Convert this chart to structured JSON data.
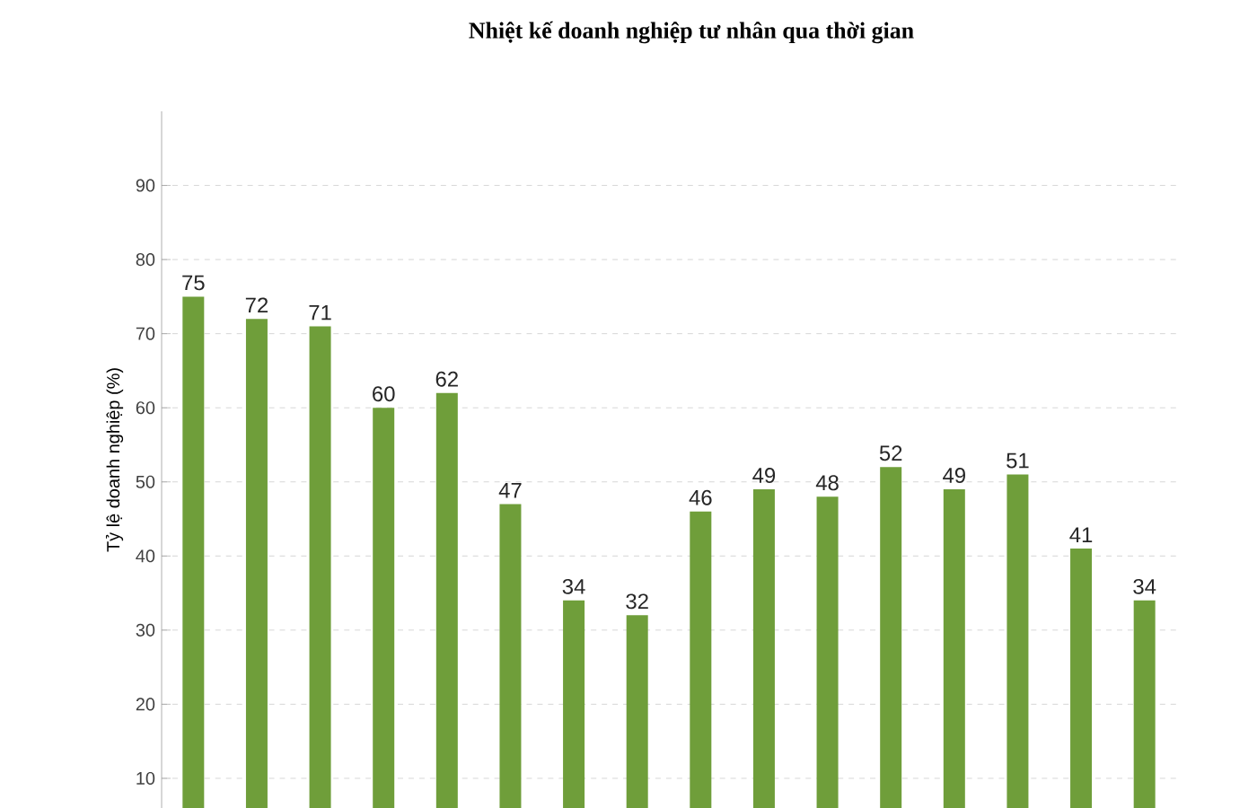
{
  "chart_data": {
    "type": "bar",
    "title": "Nhiệt kế doanh nghiệp tư nhân qua thời gian",
    "ylabel": "Tỷ lệ doanh nghiệp (%)",
    "categories": [
      null,
      null,
      null,
      null,
      null,
      null,
      null,
      null,
      null,
      null,
      null,
      null,
      null,
      null,
      null,
      null
    ],
    "values": [
      75,
      72,
      71,
      60,
      62,
      47,
      34,
      32,
      46,
      49,
      48,
      52,
      49,
      51,
      41,
      34
    ],
    "color": "#6f9e3a",
    "ylim": [
      6,
      100
    ],
    "yticks": [
      10,
      20,
      30,
      40,
      50,
      60,
      70,
      80,
      90
    ],
    "grid": "y",
    "data_labels": true,
    "tick_labels": "y"
  }
}
